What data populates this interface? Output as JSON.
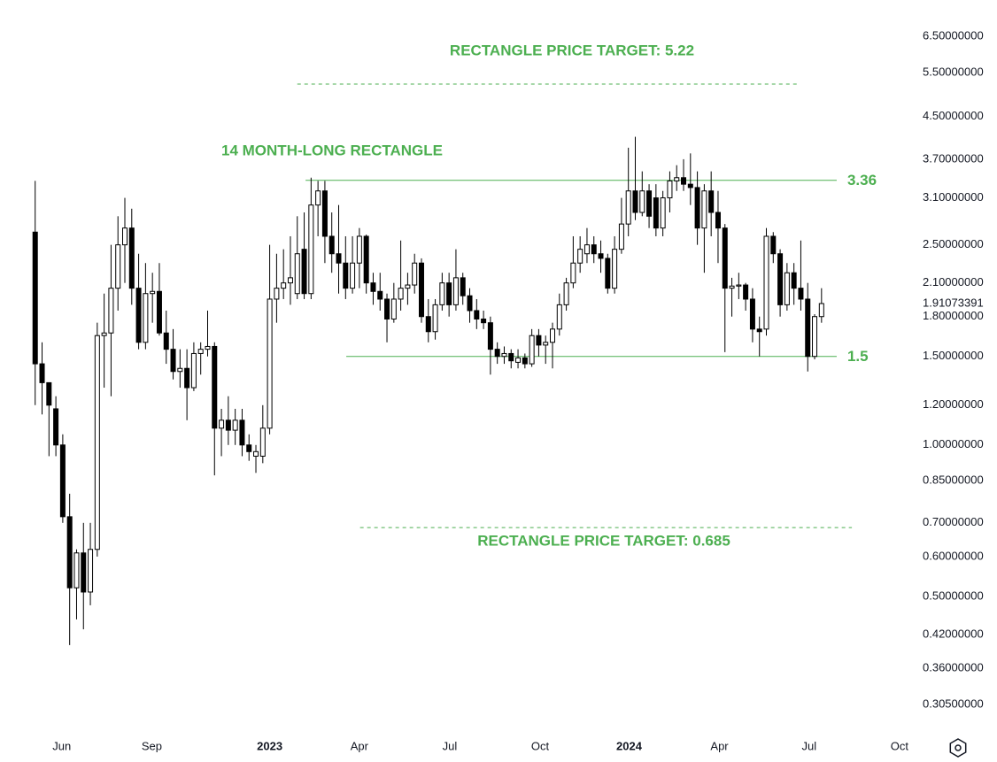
{
  "chart_data": {
    "type": "candlestick",
    "log_y": true,
    "up_color": "#ffffff",
    "down_color": "#000000",
    "line_color": "#4caf50",
    "x": [
      0,
      1,
      2,
      3,
      4,
      5,
      6,
      7,
      8,
      9,
      10,
      11,
      12,
      13,
      14,
      15,
      16,
      17,
      18,
      19,
      20,
      21,
      22,
      23,
      24,
      25,
      26,
      27,
      28,
      29,
      30,
      31,
      32,
      33,
      34,
      35,
      36,
      37,
      38,
      39,
      40,
      41,
      42,
      43,
      44,
      45,
      46,
      47,
      48,
      49,
      50,
      51,
      52,
      53,
      54,
      55,
      56,
      57,
      58,
      59,
      60,
      61,
      62,
      63,
      64,
      65,
      66,
      67,
      68,
      69,
      70,
      71,
      72,
      73,
      74,
      75,
      76,
      77,
      78,
      79,
      80,
      81,
      82,
      83,
      84,
      85,
      86,
      87,
      88,
      89,
      90,
      91,
      92,
      93,
      94,
      95,
      96,
      97,
      98,
      99,
      100,
      101,
      102,
      103,
      104,
      105,
      106,
      107,
      108,
      109,
      110,
      111,
      112,
      113,
      114
    ],
    "open": [
      2.65,
      1.45,
      1.33,
      1.18,
      1.0,
      0.72,
      0.52,
      0.61,
      0.51,
      0.62,
      1.65,
      1.67,
      2.05,
      2.5,
      2.7,
      2.05,
      1.6,
      2.0,
      2.02,
      1.67,
      1.55,
      1.4,
      1.42,
      1.3,
      1.52,
      1.55,
      1.57,
      1.08,
      1.12,
      1.07,
      1.12,
      1.0,
      0.95,
      0.95,
      1.08,
      1.95,
      2.05,
      2.1,
      2.0,
      2.45,
      2.0,
      3.0,
      3.2,
      2.6,
      2.4,
      2.3,
      2.05,
      2.3,
      2.6,
      2.1,
      2.02,
      1.95,
      1.78,
      1.95,
      2.05,
      2.08,
      2.3,
      1.8,
      1.68,
      1.9,
      2.1,
      1.9,
      2.15,
      1.98,
      1.85,
      1.78,
      1.75,
      1.55,
      1.5,
      1.52,
      1.46,
      1.49,
      1.45,
      1.65,
      1.58,
      1.6,
      1.7,
      1.9,
      2.1,
      2.3,
      2.4,
      2.5,
      2.4,
      2.35,
      2.05,
      2.45,
      2.75,
      3.2,
      2.9,
      3.2,
      3.1,
      2.7,
      3.1,
      3.35,
      3.4,
      3.3,
      3.25,
      2.7,
      3.2,
      2.9,
      2.7,
      2.05,
      2.07,
      2.08,
      1.95,
      1.7,
      1.7,
      2.6,
      2.4,
      1.9,
      2.2,
      2.05,
      1.95,
      1.5,
      1.8
    ],
    "high": [
      3.35,
      1.6,
      1.33,
      1.25,
      1.05,
      0.8,
      0.62,
      0.7,
      0.7,
      1.75,
      2.0,
      2.5,
      2.85,
      3.1,
      2.95,
      2.4,
      2.3,
      2.2,
      2.3,
      1.85,
      1.7,
      1.55,
      1.55,
      1.6,
      1.6,
      1.85,
      1.6,
      1.18,
      1.25,
      1.18,
      1.18,
      1.05,
      1.0,
      1.2,
      2.5,
      2.4,
      2.45,
      2.6,
      2.85,
      2.9,
      3.4,
      3.35,
      3.35,
      2.9,
      3.0,
      2.6,
      2.6,
      2.7,
      2.62,
      2.2,
      2.2,
      2.0,
      2.1,
      2.55,
      2.2,
      2.4,
      2.35,
      1.95,
      1.95,
      2.2,
      2.2,
      2.45,
      2.2,
      2.05,
      1.95,
      1.85,
      1.8,
      1.6,
      1.57,
      1.55,
      1.55,
      1.52,
      1.7,
      1.7,
      1.65,
      1.75,
      2.0,
      2.15,
      2.6,
      2.6,
      2.7,
      2.6,
      2.55,
      2.4,
      2.6,
      3.1,
      3.9,
      4.1,
      3.5,
      3.3,
      3.3,
      3.2,
      3.5,
      3.6,
      3.7,
      3.8,
      3.5,
      3.3,
      3.5,
      3.2,
      2.75,
      2.15,
      2.2,
      2.1,
      2.05,
      1.8,
      2.7,
      2.65,
      2.45,
      2.3,
      2.3,
      2.55,
      2.1,
      1.82,
      2.05
    ],
    "low": [
      1.2,
      1.15,
      0.95,
      0.95,
      0.7,
      0.4,
      0.45,
      0.43,
      0.48,
      0.6,
      1.3,
      1.25,
      1.85,
      2.1,
      1.9,
      1.55,
      1.55,
      1.75,
      1.65,
      1.45,
      1.35,
      1.3,
      1.12,
      1.28,
      1.38,
      1.5,
      0.87,
      0.95,
      1.0,
      1.0,
      0.95,
      0.93,
      0.88,
      0.92,
      1.05,
      1.75,
      1.95,
      1.9,
      1.95,
      1.95,
      1.95,
      2.6,
      2.3,
      2.2,
      2.0,
      1.95,
      2.0,
      2.05,
      2.0,
      1.9,
      1.85,
      1.6,
      1.75,
      1.85,
      1.9,
      2.0,
      1.75,
      1.6,
      1.62,
      1.85,
      1.8,
      1.85,
      1.9,
      1.75,
      1.7,
      1.7,
      1.38,
      1.45,
      1.45,
      1.42,
      1.42,
      1.42,
      1.43,
      1.5,
      1.45,
      1.42,
      1.65,
      1.85,
      2.05,
      2.2,
      2.3,
      2.3,
      2.2,
      2.0,
      2.0,
      2.4,
      2.6,
      2.8,
      2.85,
      2.7,
      2.6,
      2.6,
      2.9,
      3.2,
      3.2,
      3.0,
      2.5,
      2.2,
      2.6,
      2.3,
      1.53,
      1.8,
      1.95,
      1.85,
      1.6,
      1.5,
      1.65,
      2.3,
      1.8,
      1.85,
      1.9,
      1.85,
      1.4,
      1.48,
      1.75
    ],
    "close": [
      1.45,
      1.33,
      1.2,
      1.0,
      0.72,
      0.52,
      0.61,
      0.51,
      0.62,
      1.65,
      1.67,
      2.05,
      2.5,
      2.7,
      2.05,
      1.6,
      2.0,
      2.02,
      1.67,
      1.55,
      1.4,
      1.42,
      1.3,
      1.52,
      1.55,
      1.57,
      1.08,
      1.12,
      1.07,
      1.12,
      1.0,
      0.97,
      0.97,
      1.08,
      1.95,
      2.05,
      2.1,
      2.15,
      2.4,
      2.0,
      3.0,
      3.2,
      2.6,
      2.4,
      2.3,
      2.05,
      2.3,
      2.6,
      2.1,
      2.02,
      1.95,
      1.78,
      1.95,
      2.05,
      2.08,
      2.3,
      1.8,
      1.68,
      1.9,
      2.1,
      1.9,
      2.15,
      1.98,
      1.85,
      1.78,
      1.75,
      1.55,
      1.5,
      1.52,
      1.47,
      1.49,
      1.45,
      1.65,
      1.58,
      1.6,
      1.7,
      1.9,
      2.1,
      2.3,
      2.45,
      2.5,
      2.4,
      2.35,
      2.05,
      2.45,
      2.75,
      3.2,
      2.9,
      3.2,
      2.85,
      2.7,
      3.1,
      3.35,
      3.4,
      3.3,
      3.25,
      2.7,
      3.2,
      2.9,
      2.7,
      2.05,
      2.07,
      2.08,
      1.95,
      1.7,
      1.68,
      2.6,
      2.4,
      1.9,
      2.2,
      2.05,
      1.95,
      1.5,
      1.8,
      1.91073391
    ],
    "xlim": [
      -5.1,
      128.4
    ],
    "xticks": [
      {
        "value": 3.85,
        "label": "Jun"
      },
      {
        "value": 16.9,
        "label": "Sep"
      },
      {
        "value": 34,
        "label": "2023"
      },
      {
        "value": 47,
        "label": "Apr"
      },
      {
        "value": 60.1,
        "label": "Jul"
      },
      {
        "value": 73.2,
        "label": "Oct"
      },
      {
        "value": 86.1,
        "label": "2024"
      },
      {
        "value": 99.2,
        "label": "Apr"
      },
      {
        "value": 112.2,
        "label": "Jul"
      },
      {
        "value": 125.3,
        "label": "Oct"
      }
    ],
    "ylim": [
      0.271,
      7.67
    ],
    "yticks": [
      {
        "value": 6.5,
        "label": "6.50000000"
      },
      {
        "value": 5.5,
        "label": "5.50000000"
      },
      {
        "value": 4.5,
        "label": "4.50000000"
      },
      {
        "value": 3.7,
        "label": "3.70000000"
      },
      {
        "value": 3.1,
        "label": "3.10000000"
      },
      {
        "value": 2.5,
        "label": "2.50000000"
      },
      {
        "value": 2.1,
        "label": "2.10000000"
      },
      {
        "value": 1.8,
        "label": "1.80000000"
      },
      {
        "value": 1.5,
        "label": "1.50000000"
      },
      {
        "value": 1.2,
        "label": "1.20000000"
      },
      {
        "value": 1.0,
        "label": "1.00000000"
      },
      {
        "value": 0.85,
        "label": "0.85000000"
      },
      {
        "value": 0.7,
        "label": "0.70000000"
      },
      {
        "value": 0.6,
        "label": "0.60000000"
      },
      {
        "value": 0.5,
        "label": "0.50000000"
      },
      {
        "value": 0.42,
        "label": "0.42000000"
      },
      {
        "value": 0.36,
        "label": "0.36000000"
      },
      {
        "value": 0.305,
        "label": "0.30500000"
      }
    ],
    "levels": [
      {
        "value": 5.22,
        "x": [
          38.0,
          110.4
        ],
        "dashed": true
      },
      {
        "value": 3.36,
        "x": [
          39.2,
          116.2
        ],
        "dashed": false
      },
      {
        "value": 1.5,
        "x": [
          45.1,
          116.2
        ],
        "dashed": false
      },
      {
        "value": 0.685,
        "x": [
          47.1,
          118.4
        ],
        "dashed": true
      }
    ],
    "annotations": [
      "RECTANGLE PRICE TARGET: 5.22",
      "14 MONTH-LONG RECTANGLE",
      "RECTANGLE PRICE TARGET: 0.685"
    ]
  }
}
